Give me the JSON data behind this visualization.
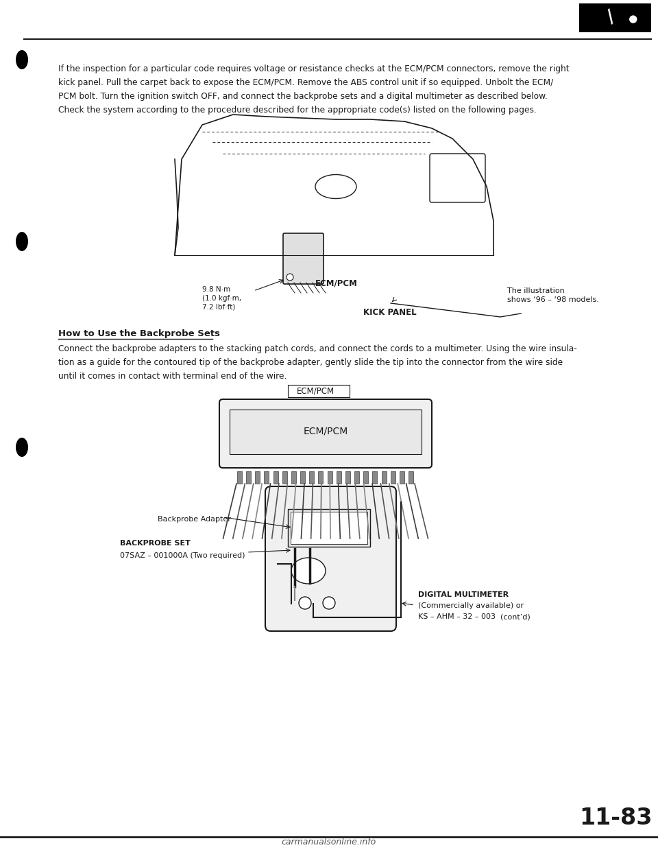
{
  "page_number": "11-83",
  "background_color": "#ffffff",
  "text_color": "#000000",
  "intro_text_lines": [
    "If the inspection for a particular code requires voltage or resistance checks at the ECM/PCM connectors, remove the right",
    "kick panel. Pull the carpet back to expose the ECM/PCM. Remove the ABS control unit if so equipped. Unbolt the ECM/",
    "PCM bolt. Turn the ignition switch OFF, and connect the backprobe sets and a digital multimeter as described below.",
    "Check the system according to the procedure described for the appropriate code(s) listed on the following pages."
  ],
  "section_title": "How to Use the Backprobe Sets",
  "section_body_lines": [
    "Connect the backprobe adapters to the stacking patch cords, and connect the cords to a multimeter. Using the wire insula-",
    "tion as a guide for the contoured tip of the backprobe adapter, gently slide the tip into the connector from the wire side",
    "until it comes in contact with terminal end of the wire."
  ],
  "diag1_torque": "9.8 N·m\n(1.0 kgf·m,\n7.2 lbf·ft)",
  "diag1_ecm_pcm": "ECM/PCM",
  "diag1_kick_panel": "KICK PANEL",
  "diag1_illus_note": "The illustration\nshows ‘96 – ‘98 models.",
  "diag2_ecm_pcm": "ECM/PCM",
  "diag2_backprobe_adapter": "Backprobe Adapter",
  "diag2_backprobe_set_line1": "BACKPROBE SET",
  "diag2_backprobe_set_line2": "07SAZ – 001000A (Two required)",
  "diag2_digital_mult_line1": "DIGITAL MULTIMETER",
  "diag2_digital_mult_line2": "(Commercially available) or",
  "diag2_digital_mult_line3": "KS – AHM – 32 – 003",
  "diag2_digital_mult_cont": "(cont’d)",
  "footer_text": "carmanualsonline.info",
  "line_color": "#1a1a1a"
}
